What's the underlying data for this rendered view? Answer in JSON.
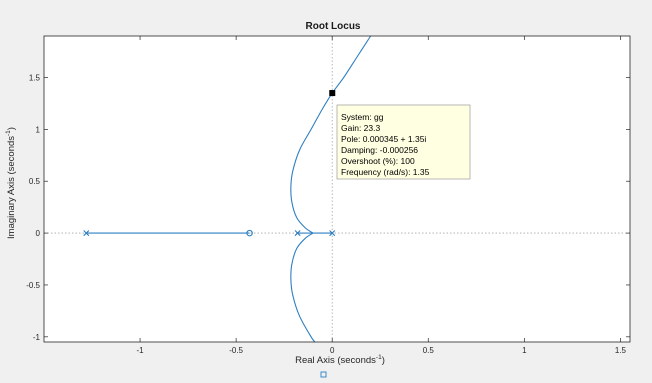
{
  "chart_data": {
    "type": "line",
    "title": "Root Locus",
    "xlabel": "Real Axis (seconds",
    "ylabel": "Imaginary Axis (seconds",
    "unit_sup": "-1",
    "unit_close": ")",
    "xlim": [
      -1.5,
      1.55
    ],
    "ylim": [
      -1.05,
      1.9
    ],
    "xticks": [
      -1,
      -0.5,
      0,
      0.5,
      1,
      1.5
    ],
    "yticks": [
      -1,
      -0.5,
      0,
      0.5,
      1,
      1.5
    ],
    "grid": false,
    "colors": {
      "locus": "#2e7fc2",
      "axis": "#262626",
      "dotted": "#a8a8a8",
      "datatip_bg": "#ffffe1"
    },
    "poles": [
      {
        "x": -1.28,
        "y": 0
      },
      {
        "x": -0.18,
        "y": 0
      },
      {
        "x": 0,
        "y": 0
      }
    ],
    "zeros": [
      {
        "x": -0.43,
        "y": 0
      }
    ],
    "branches": [
      {
        "points": [
          [
            -1.28,
            0
          ],
          [
            -0.43,
            0
          ]
        ]
      },
      {
        "points": [
          [
            -0.18,
            0
          ],
          [
            -0.1,
            0
          ]
        ]
      },
      {
        "points": [
          [
            0,
            0
          ],
          [
            -0.1,
            0
          ]
        ]
      },
      {
        "points": [
          [
            -0.1,
            0
          ],
          [
            -0.14,
            0.05
          ],
          [
            -0.185,
            0.15
          ],
          [
            -0.21,
            0.3
          ],
          [
            -0.215,
            0.45
          ],
          [
            -0.205,
            0.6
          ],
          [
            -0.17,
            0.8
          ],
          [
            -0.11,
            1.0
          ],
          [
            -0.05,
            1.2
          ],
          [
            0.0003,
            1.35
          ],
          [
            0.06,
            1.5
          ],
          [
            0.13,
            1.7
          ],
          [
            0.2,
            1.9
          ]
        ]
      },
      {
        "points": [
          [
            -0.1,
            0
          ],
          [
            -0.14,
            -0.05
          ],
          [
            -0.185,
            -0.15
          ],
          [
            -0.21,
            -0.3
          ],
          [
            -0.215,
            -0.45
          ],
          [
            -0.205,
            -0.6
          ],
          [
            -0.17,
            -0.8
          ],
          [
            -0.11,
            -1.0
          ],
          [
            -0.09,
            -1.05
          ]
        ]
      }
    ],
    "datatip": {
      "x": 0.000345,
      "y": 1.35,
      "lines": [
        "System: gg",
        "Gain: 23.3",
        "Pole: 0.000345 + 1.35i",
        "Damping: -0.000256",
        "Overshoot (%): 100",
        "Frequency (rad/s): 1.35"
      ]
    }
  }
}
